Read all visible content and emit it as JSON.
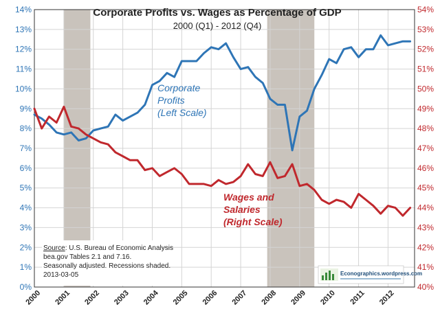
{
  "chart_data": {
    "type": "line",
    "title": "Corporate Profits vs. Wages as Percentage of GDP",
    "subtitle": "2000 (Q1) - 2012 (Q4)",
    "x_tick_labels": [
      "2000",
      "2001",
      "2002",
      "2003",
      "2004",
      "2005",
      "2006",
      "2007",
      "2008",
      "2009",
      "2010",
      "2011",
      "2012"
    ],
    "xlim": [
      2000,
      2012.9
    ],
    "left_axis": {
      "ylim": [
        0,
        14
      ],
      "ticks": [
        "0%",
        "1%",
        "2%",
        "3%",
        "4%",
        "5%",
        "6%",
        "7%",
        "8%",
        "9%",
        "10%",
        "11%",
        "12%",
        "13%",
        "14%"
      ],
      "color": "#2e75b6"
    },
    "right_axis": {
      "ylim": [
        40,
        54
      ],
      "ticks": [
        "40%",
        "41%",
        "42%",
        "43%",
        "44%",
        "45%",
        "46%",
        "47%",
        "48%",
        "49%",
        "50%",
        "51%",
        "52%",
        "53%",
        "54%"
      ],
      "color": "#c0282d"
    },
    "grid": true,
    "recessions": [
      [
        2001.0,
        2001.9
      ],
      [
        2007.9,
        2009.5
      ]
    ],
    "series": [
      {
        "name": "Corporate Profits",
        "axis": "left",
        "color": "#2e75b6",
        "x": [
          2000.0,
          2000.25,
          2000.5,
          2000.75,
          2001.0,
          2001.25,
          2001.5,
          2001.75,
          2002.0,
          2002.25,
          2002.5,
          2002.75,
          2003.0,
          2003.25,
          2003.5,
          2003.75,
          2004.0,
          2004.25,
          2004.5,
          2004.75,
          2005.0,
          2005.25,
          2005.5,
          2005.75,
          2006.0,
          2006.25,
          2006.5,
          2006.75,
          2007.0,
          2007.25,
          2007.5,
          2007.75,
          2008.0,
          2008.25,
          2008.5,
          2008.75,
          2009.0,
          2009.25,
          2009.5,
          2009.75,
          2010.0,
          2010.25,
          2010.5,
          2010.75,
          2011.0,
          2011.25,
          2011.5,
          2011.75,
          2012.0,
          2012.25,
          2012.5,
          2012.75
        ],
        "values": [
          8.7,
          8.5,
          8.2,
          7.8,
          7.7,
          7.8,
          7.4,
          7.5,
          7.9,
          8.0,
          8.1,
          8.7,
          8.4,
          8.6,
          8.8,
          9.2,
          10.2,
          10.4,
          10.8,
          10.6,
          11.4,
          11.4,
          11.4,
          11.8,
          12.1,
          12.0,
          12.3,
          11.6,
          11.0,
          11.1,
          10.6,
          10.3,
          9.5,
          9.2,
          9.2,
          6.9,
          8.6,
          8.9,
          10.0,
          10.7,
          11.5,
          11.3,
          12.0,
          12.1,
          11.6,
          12.0,
          12.0,
          12.7,
          12.2,
          12.3,
          12.4,
          12.4
        ]
      },
      {
        "name": "Wages and Salaries",
        "axis": "right",
        "color": "#c0282d",
        "x": [
          2000.0,
          2000.25,
          2000.5,
          2000.75,
          2001.0,
          2001.25,
          2001.5,
          2001.75,
          2002.0,
          2002.25,
          2002.5,
          2002.75,
          2003.0,
          2003.25,
          2003.5,
          2003.75,
          2004.0,
          2004.25,
          2004.5,
          2004.75,
          2005.0,
          2005.25,
          2005.5,
          2005.75,
          2006.0,
          2006.25,
          2006.5,
          2006.75,
          2007.0,
          2007.25,
          2007.5,
          2007.75,
          2008.0,
          2008.25,
          2008.5,
          2008.75,
          2009.0,
          2009.25,
          2009.5,
          2009.75,
          2010.0,
          2010.25,
          2010.5,
          2010.75,
          2011.0,
          2011.25,
          2011.5,
          2011.75,
          2012.0,
          2012.25,
          2012.5,
          2012.75
        ],
        "values": [
          49.0,
          48.0,
          48.6,
          48.3,
          49.1,
          48.1,
          48.0,
          47.7,
          47.5,
          47.3,
          47.2,
          46.8,
          46.6,
          46.4,
          46.4,
          45.9,
          46.0,
          45.6,
          45.8,
          46.0,
          45.7,
          45.2,
          45.2,
          45.2,
          45.1,
          45.4,
          45.2,
          45.3,
          45.6,
          46.2,
          45.7,
          45.6,
          46.3,
          45.5,
          45.6,
          46.2,
          45.1,
          45.2,
          44.9,
          44.4,
          44.2,
          44.4,
          44.3,
          44.0,
          44.7,
          44.4,
          44.1,
          43.7,
          44.1,
          44.0,
          43.6,
          44.0
        ]
      }
    ],
    "annotations": {
      "profits_label": [
        "Corporate",
        "Profits",
        "(Left Scale)"
      ],
      "wages_label": [
        "Wages and",
        "Salaries",
        "(Right Scale)"
      ]
    },
    "source_note": {
      "source_word": "Source",
      "source_rest": ":  U.S. Bureau of Economic Analysis",
      "line2": "bea.gov Tables 2.1 and 7.16.",
      "line3": "Seasonally adjusted. Recessions shaded.",
      "line4": "2013-03-05"
    },
    "logo_text": "Econographics.wordpress.com"
  }
}
